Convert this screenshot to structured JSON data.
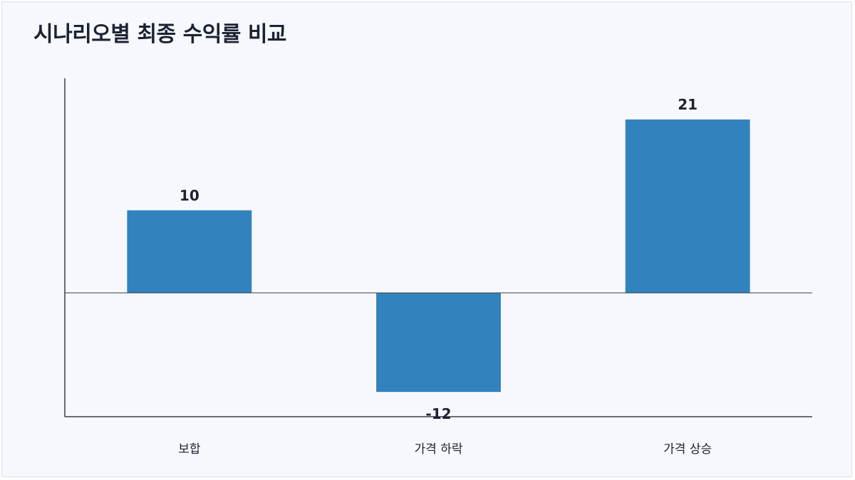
{
  "title": "시나리오별 최종 수익률 비교",
  "colors": {
    "bar": "#3182bd",
    "axis": "#3a3f4d",
    "background": "#f6f8fd"
  },
  "chart_data": {
    "type": "bar",
    "title": "시나리오별 최종 수익률 비교",
    "categories": [
      "보합",
      "가격 하락",
      "가격 상승"
    ],
    "values": [
      10,
      -12,
      21
    ],
    "xlabel": "",
    "ylabel": "",
    "ylim": [
      -15,
      26
    ],
    "grid": false,
    "data_labels": true
  }
}
